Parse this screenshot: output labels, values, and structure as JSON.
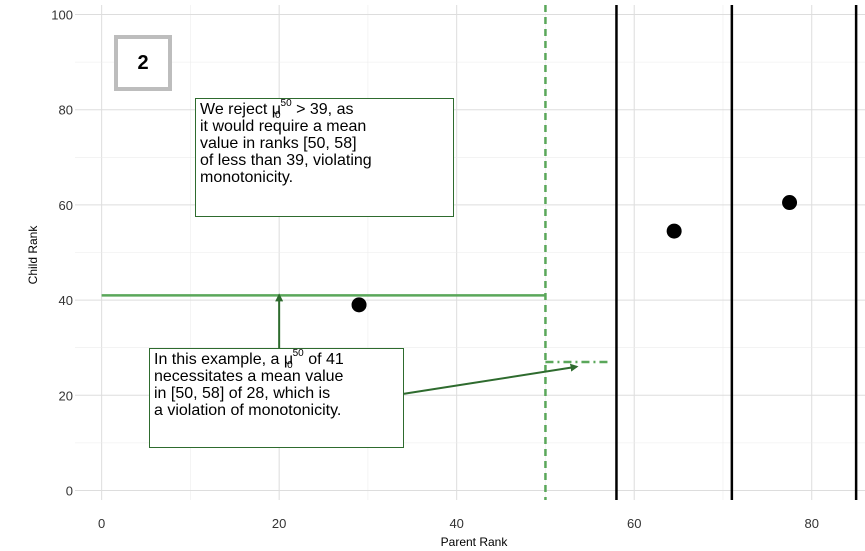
{
  "chart_data": {
    "type": "scatter",
    "title": "",
    "xlabel": "Parent Rank",
    "ylabel": "Child Rank",
    "xlim": [
      -3,
      86
    ],
    "ylim": [
      -2,
      102
    ],
    "x_ticks": [
      0,
      20,
      40,
      60,
      80
    ],
    "y_ticks": [
      0,
      20,
      40,
      60,
      80,
      100
    ],
    "grid": true,
    "points": [
      {
        "x": 29,
        "y": 39
      },
      {
        "x": 64.5,
        "y": 54.5
      },
      {
        "x": 77.5,
        "y": 60.5
      }
    ],
    "vertical_lines": [
      {
        "x": 50,
        "style": "dashed",
        "color": "#5aa75a"
      },
      {
        "x": 58,
        "style": "solid",
        "color": "#000000"
      },
      {
        "x": 71,
        "style": "solid",
        "color": "#000000"
      },
      {
        "x": 85,
        "style": "solid",
        "color": "#000000"
      }
    ],
    "horizontal_segments": [
      {
        "x0": 0,
        "x1": 50,
        "y": 41,
        "style": "solid",
        "color": "#5aa75a"
      },
      {
        "x0": 50,
        "x1": 57,
        "y": 27,
        "style": "dashed",
        "color": "#5aa75a"
      }
    ],
    "arrows": [
      {
        "from": [
          20,
          19
        ],
        "to": [
          20,
          41
        ]
      },
      {
        "from": [
          33,
          20
        ],
        "to": [
          53.5,
          26
        ]
      }
    ]
  },
  "badge": "2",
  "annotation_top": {
    "lines": [
      {
        "pre": "We reject μ",
        "sub": "0",
        "sup": "50",
        "post": " > 39, as"
      },
      {
        "text": "it would require a mean"
      },
      {
        "text": "value in ranks [50, 58]"
      },
      {
        "text": "of less than 39, violating"
      },
      {
        "text": "monotonicity."
      }
    ]
  },
  "annotation_bottom": {
    "lines": [
      {
        "pre": "In this example, a μ",
        "sub": "0",
        "sup": "50",
        "post": " of 41"
      },
      {
        "text": "necessitates a mean value"
      },
      {
        "text": "in [50, 58] of 28, which is"
      },
      {
        "text": "a violation of monotonicity."
      }
    ]
  },
  "colors": {
    "green": "#5aa75a",
    "arrow": "#2e6b2e",
    "grid": "#dddddd",
    "point": "#000000"
  }
}
